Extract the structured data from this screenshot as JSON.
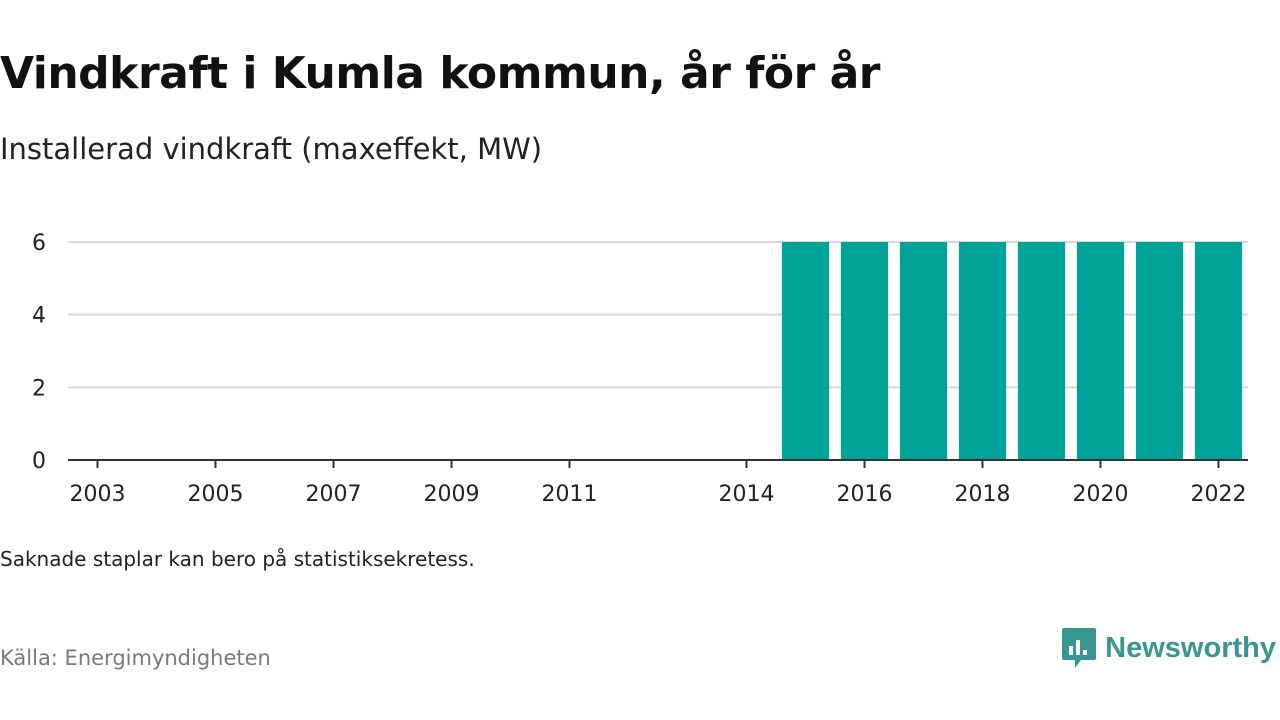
{
  "title": "Vindkraft i Kumla kommun, år för år",
  "subtitle": "Installerad vindkraft (maxeffekt, MW)",
  "note": "Saknade staplar kan bero på statistiksekretess.",
  "source": "Källa: Energimyndigheten",
  "brand": {
    "name": "Newsworthy",
    "icon": "newsworthy-logo-icon",
    "color": "#3a9690"
  },
  "chart_data": {
    "type": "bar",
    "categories": [
      "2003",
      "2004",
      "2005",
      "2006",
      "2007",
      "2008",
      "2009",
      "2010",
      "2011",
      "2012",
      "2013",
      "2014",
      "2015",
      "2016",
      "2017",
      "2018",
      "2019",
      "2020",
      "2021",
      "2022"
    ],
    "values": [
      0,
      0,
      0,
      0,
      0,
      0,
      0,
      0,
      0,
      0,
      0,
      0,
      6,
      6,
      6,
      6,
      6,
      6,
      6,
      6
    ],
    "x_tick_labels": [
      "2003",
      "2005",
      "2007",
      "2009",
      "2011",
      "2014",
      "2016",
      "2018",
      "2020",
      "2022"
    ],
    "y_ticks": [
      0,
      2,
      4,
      6
    ],
    "ylim": [
      0,
      6
    ],
    "grid": true,
    "bar_color": "#00a398",
    "title": "Vindkraft i Kumla kommun, år för år",
    "subtitle": "Installerad vindkraft (maxeffekt, MW)"
  }
}
